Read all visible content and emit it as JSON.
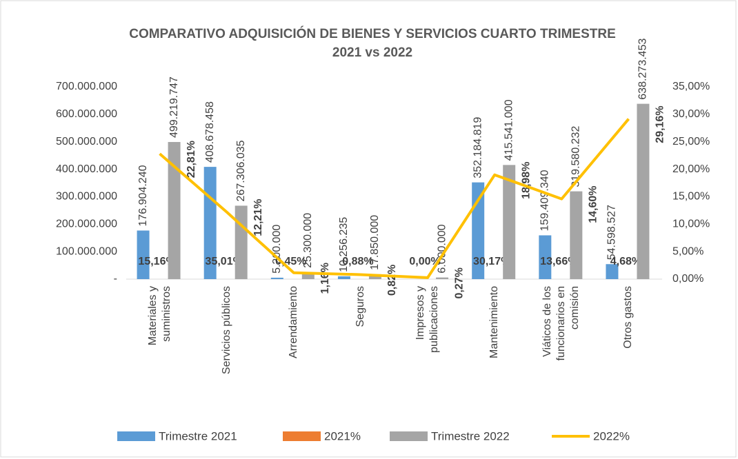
{
  "chart_data": {
    "type": "bar-line",
    "title": [
      "COMPARATIVO ADQUISICIÓN DE BIENES Y SERVICIOS CUARTO TRIMESTRE",
      "2021 vs 2022"
    ],
    "categories": [
      "Materiales y suministros",
      "Servicios públicos",
      "Arrendamiento",
      "Seguros",
      "Impresos y publicaciones",
      "Mantenimiento",
      "Viáticos de los funcionarios en comisión",
      "Otros gastos"
    ],
    "series": [
      {
        "name": "Trimestre 2021",
        "type": "bar",
        "axis": "y",
        "color": "#5b9bd5",
        "values": [
          176904240,
          408678458,
          5200000,
          10256235,
          0,
          352184819,
          159409340,
          54598527
        ],
        "value_labels": [
          "176.904.240",
          "408.678.458",
          "5.200.000",
          "10.256.235",
          null,
          "352.184.819",
          "159.409.340",
          "54.598.527"
        ]
      },
      {
        "name": "2021%",
        "type": "bar",
        "axis": "y",
        "color": "#ed7d31",
        "values": [
          15.16,
          35.01,
          0.45,
          0.88,
          0.0,
          30.17,
          13.66,
          4.68
        ],
        "value_labels": [
          "15,16%",
          "35,01%",
          "0,45%",
          "0,88%",
          "0,00%",
          "30,17%",
          "13,66%",
          "4,68%"
        ]
      },
      {
        "name": "Trimestre 2022",
        "type": "bar",
        "axis": "y",
        "color": "#a5a5a5",
        "values": [
          499219747,
          267306035,
          25300000,
          17850000,
          6000000,
          415541000,
          319580232,
          638273453
        ],
        "value_labels": [
          "499.219.747",
          "267.306.035",
          "25.300.000",
          "17.850.000",
          "6.000.000",
          "415.541.000",
          "319.580.232",
          "638.273.453"
        ]
      },
      {
        "name": "2022%",
        "type": "line",
        "axis": "y2",
        "color": "#ffc000",
        "values": [
          22.81,
          12.21,
          1.16,
          0.82,
          0.27,
          18.98,
          14.6,
          29.16
        ],
        "value_labels": [
          "22,81%",
          "12,21%",
          "1,16%",
          "0,82%",
          "0,27%",
          "18,98%",
          "14,60%",
          "29,16%"
        ]
      }
    ],
    "ylim": [
      0,
      700000000
    ],
    "yticks": [
      {
        "value": 0,
        "label": "-"
      },
      {
        "value": 100000000,
        "label": "100.000.000"
      },
      {
        "value": 200000000,
        "label": "200.000.000"
      },
      {
        "value": 300000000,
        "label": "300.000.000"
      },
      {
        "value": 400000000,
        "label": "400.000.000"
      },
      {
        "value": 500000000,
        "label": "500.000.000"
      },
      {
        "value": 600000000,
        "label": "600.000.000"
      },
      {
        "value": 700000000,
        "label": "700.000.000"
      }
    ],
    "y2lim": [
      0,
      35
    ],
    "y2ticks": [
      {
        "value": 0,
        "label": "0,00%"
      },
      {
        "value": 5,
        "label": "5,00%"
      },
      {
        "value": 10,
        "label": "10,00%"
      },
      {
        "value": 15,
        "label": "15,00%"
      },
      {
        "value": 20,
        "label": "20,00%"
      },
      {
        "value": 25,
        "label": "25,00%"
      },
      {
        "value": 30,
        "label": "30,00%"
      },
      {
        "value": 35,
        "label": "35,00%"
      }
    ],
    "legend": "bottom"
  }
}
